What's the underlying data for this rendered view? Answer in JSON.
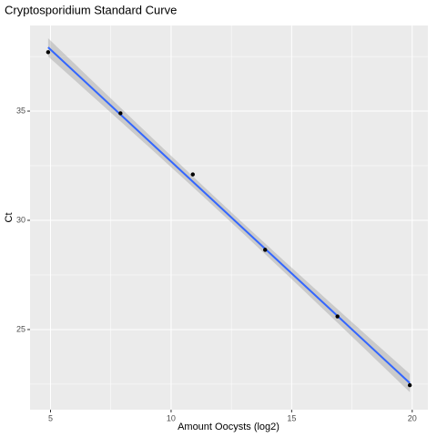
{
  "chart_data": {
    "type": "scatter",
    "title": "Cryptosporidium Standard Curve",
    "x_label": "Amount Oocysts (log2)",
    "y_label": "Ct",
    "x": [
      4.9,
      7.9,
      10.9,
      13.9,
      16.9,
      19.9
    ],
    "values": [
      37.7,
      34.9,
      32.1,
      28.65,
      25.6,
      22.45
    ],
    "color": "#000000",
    "fit_color": "#3366ff",
    "band_color": "#999999",
    "smooth": "lm",
    "xlim": [
      4.15,
      20.65
    ],
    "xticks": [
      5,
      10,
      15,
      20
    ],
    "minor_xticks": [
      7.5,
      12.5,
      17.5
    ],
    "ylim": [
      21.33,
      38.92
    ],
    "yticks": [
      25,
      30,
      35
    ],
    "minor_yticks": [
      22.5,
      27.5,
      32.5,
      37.5
    ],
    "grid": true
  }
}
